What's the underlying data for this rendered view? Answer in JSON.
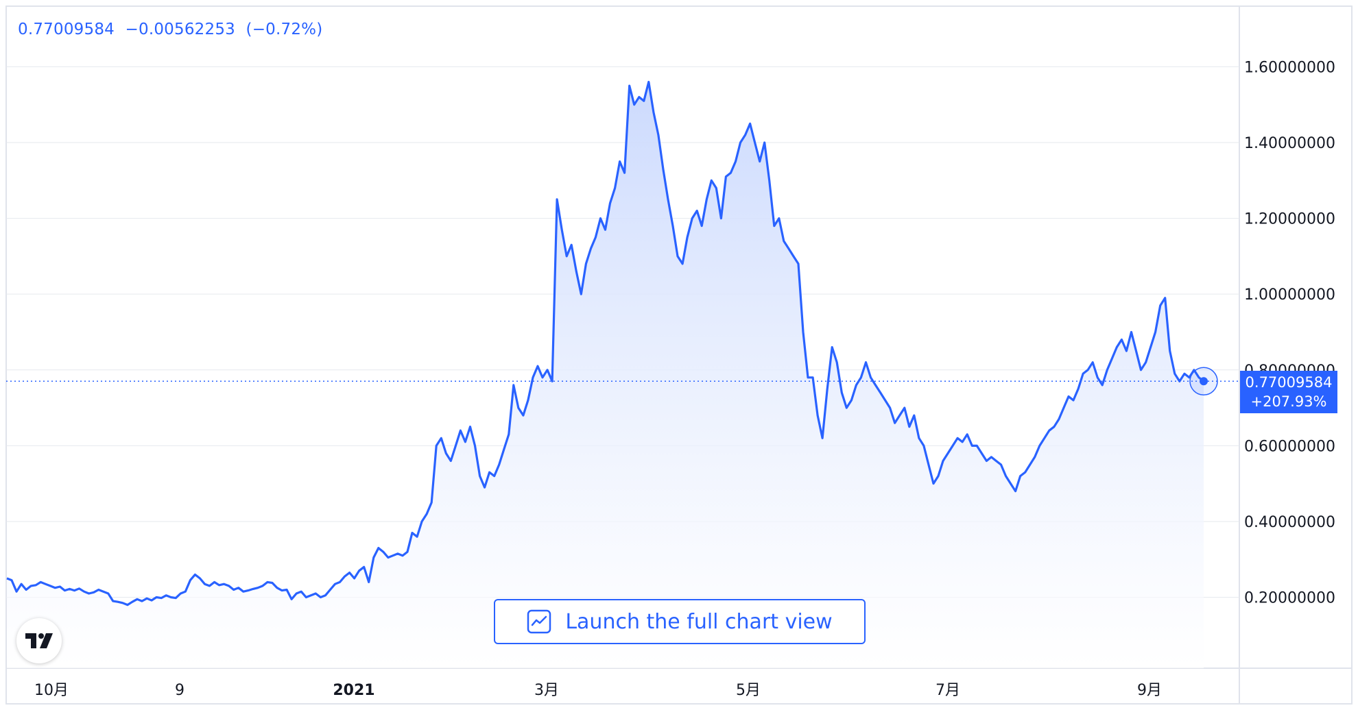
{
  "legend": {
    "last_value": "0.77009584",
    "change": "−0.00562253",
    "change_pct": "(−0.72%)"
  },
  "price_label": {
    "value": "0.77009584",
    "pct": "+207.93%"
  },
  "launch_button": {
    "label": "Launch the full chart view",
    "icon": "chart-line-icon"
  },
  "logo": {
    "icon": "tradingview-logo-icon"
  },
  "colors": {
    "line": "#2962ff",
    "fill_top": "#c9d8fd",
    "fill_bottom": "#ffffff",
    "grid": "#e6e9ee",
    "text": "#131722"
  },
  "chart_data": {
    "type": "area",
    "x_ticks": [
      "10月",
      "9",
      "2021",
      "3月",
      "5月",
      "7月",
      "9月"
    ],
    "y_ticks": [
      "1.60000000",
      "1.40000000",
      "1.20000000",
      "1.00000000",
      "0.80000000",
      "0.60000000",
      "0.40000000",
      "0.20000000"
    ],
    "ylim": [
      0.04,
      1.74
    ],
    "last_value": 0.77009584,
    "series": [
      {
        "x_range": [
          "2020-09-20",
          "2021-09-23"
        ],
        "values": [
          0.25,
          0.245,
          0.215,
          0.235,
          0.22,
          0.23,
          0.232,
          0.24,
          0.235,
          0.23,
          0.225,
          0.228,
          0.218,
          0.222,
          0.218,
          0.223,
          0.215,
          0.21,
          0.213,
          0.22,
          0.215,
          0.21,
          0.19,
          0.188,
          0.185,
          0.18,
          0.188,
          0.195,
          0.19,
          0.197,
          0.192,
          0.2,
          0.198,
          0.205,
          0.2,
          0.198,
          0.21,
          0.215,
          0.245,
          0.26,
          0.25,
          0.235,
          0.23,
          0.24,
          0.232,
          0.235,
          0.23,
          0.22,
          0.225,
          0.215,
          0.218,
          0.222,
          0.225,
          0.23,
          0.24,
          0.238,
          0.225,
          0.218,
          0.22,
          0.195,
          0.21,
          0.215,
          0.2,
          0.205,
          0.21,
          0.2,
          0.205,
          0.22,
          0.235,
          0.24,
          0.255,
          0.265,
          0.25,
          0.27,
          0.28,
          0.24,
          0.305,
          0.33,
          0.32,
          0.305,
          0.31,
          0.315,
          0.31,
          0.32,
          0.37,
          0.36,
          0.4,
          0.42,
          0.45,
          0.6,
          0.62,
          0.58,
          0.56,
          0.6,
          0.64,
          0.61,
          0.65,
          0.6,
          0.52,
          0.49,
          0.53,
          0.52,
          0.55,
          0.59,
          0.63,
          0.76,
          0.7,
          0.68,
          0.72,
          0.78,
          0.81,
          0.78,
          0.8,
          0.77,
          1.25,
          1.17,
          1.1,
          1.13,
          1.06,
          1.0,
          1.08,
          1.12,
          1.15,
          1.2,
          1.17,
          1.24,
          1.28,
          1.35,
          1.32,
          1.55,
          1.5,
          1.52,
          1.51,
          1.56,
          1.48,
          1.42,
          1.33,
          1.25,
          1.18,
          1.1,
          1.08,
          1.15,
          1.2,
          1.22,
          1.18,
          1.25,
          1.3,
          1.28,
          1.2,
          1.31,
          1.32,
          1.35,
          1.4,
          1.42,
          1.45,
          1.4,
          1.35,
          1.4,
          1.3,
          1.18,
          1.2,
          1.14,
          1.12,
          1.1,
          1.08,
          0.9,
          0.78,
          0.78,
          0.68,
          0.62,
          0.75,
          0.86,
          0.82,
          0.74,
          0.7,
          0.72,
          0.76,
          0.78,
          0.82,
          0.78,
          0.76,
          0.74,
          0.72,
          0.7,
          0.66,
          0.68,
          0.7,
          0.65,
          0.68,
          0.62,
          0.6,
          0.55,
          0.5,
          0.52,
          0.56,
          0.58,
          0.6,
          0.62,
          0.61,
          0.63,
          0.6,
          0.6,
          0.58,
          0.56,
          0.57,
          0.56,
          0.55,
          0.52,
          0.5,
          0.48,
          0.52,
          0.53,
          0.55,
          0.57,
          0.6,
          0.62,
          0.64,
          0.65,
          0.67,
          0.7,
          0.73,
          0.72,
          0.75,
          0.79,
          0.8,
          0.82,
          0.78,
          0.76,
          0.8,
          0.83,
          0.86,
          0.88,
          0.85,
          0.9,
          0.85,
          0.8,
          0.82,
          0.86,
          0.9,
          0.97,
          0.99,
          0.85,
          0.79,
          0.77,
          0.79,
          0.78,
          0.8,
          0.78,
          0.77
        ]
      }
    ]
  }
}
